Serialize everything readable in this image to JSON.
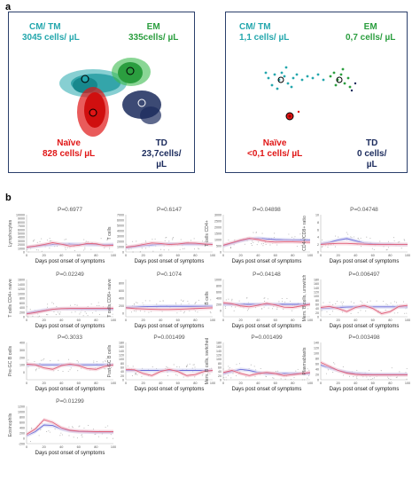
{
  "panel_a": {
    "letter": "a",
    "left_box": {
      "cm_tm": {
        "name": "CM/ TM",
        "count": "3045 cells/ µL"
      },
      "em": {
        "name": "EM",
        "count": "335cells/ µL"
      },
      "naive": {
        "name": "Naïve",
        "count": "828 cells/ µL"
      },
      "td": {
        "name": "TD",
        "count_line1": "23,7cells/",
        "count_line2": "µL"
      }
    },
    "right_box": {
      "cm_tm": {
        "name": "CM/ TM",
        "count": "1,1 cells/ µL"
      },
      "em": {
        "name": "EM",
        "count": "0,7 cells/ µL"
      },
      "naive": {
        "name": "Naïve",
        "count": "<0,1 cells/ µL"
      },
      "td": {
        "name": "TD",
        "count_line1": "0 cells/",
        "count_line2": "µL"
      }
    },
    "colors": {
      "cm_tm": "#24a7ad",
      "em": "#2b9e3f",
      "naive": "#e01616",
      "td": "#1a2a5c",
      "frame": "#2b3f6b"
    }
  },
  "panel_b": {
    "letter": "b",
    "colors": {
      "line_blue": "#6b6bd8",
      "line_red": "#e0607a",
      "band": "#d9d9e8",
      "points": "#999999"
    }
  },
  "chart_data": [
    {
      "type": "line",
      "title": "P=0.6977",
      "ylabel": "Lymphocytes",
      "xlabel": "Days post onset of symptoms",
      "xlim": [
        0,
        100
      ],
      "ylim": [
        0,
        10000
      ],
      "yticks": [
        0,
        1000,
        2000,
        3000,
        4000,
        5000,
        6000,
        7000,
        8000,
        9000,
        10000
      ],
      "xticks": [
        0,
        20,
        40,
        60,
        80,
        100
      ],
      "series": [
        {
          "x": [
            0,
            10,
            20,
            30,
            40,
            50,
            60,
            70,
            80,
            90,
            100
          ],
          "values": [
            1200,
            1500,
            1800,
            2000,
            2100,
            2100,
            2050,
            2000,
            1950,
            1950,
            2000
          ]
        },
        {
          "x": [
            0,
            10,
            20,
            30,
            40,
            50,
            60,
            70,
            80,
            90,
            100
          ],
          "values": [
            1300,
            1600,
            2000,
            2500,
            2100,
            1600,
            1800,
            2300,
            2200,
            1700,
            1800
          ]
        }
      ]
    },
    {
      "type": "line",
      "title": "P=0.6147",
      "ylabel": "T cells",
      "xlabel": "Days post onset of symptoms",
      "xlim": [
        0,
        100
      ],
      "ylim": [
        0,
        7000
      ],
      "yticks": [
        0,
        1000,
        2000,
        3000,
        4000,
        5000,
        6000,
        7000
      ],
      "xticks": [
        0,
        20,
        40,
        60,
        80,
        100
      ],
      "series": [
        {
          "x": [
            0,
            10,
            20,
            30,
            40,
            50,
            60,
            70,
            80,
            90,
            100
          ],
          "values": [
            800,
            1000,
            1200,
            1350,
            1450,
            1500,
            1500,
            1480,
            1470,
            1460,
            1450
          ]
        },
        {
          "x": [
            0,
            10,
            20,
            30,
            40,
            50,
            60,
            70,
            80,
            90,
            100
          ],
          "values": [
            900,
            1100,
            1400,
            1700,
            1600,
            1400,
            1500,
            1700,
            1650,
            1500,
            1400
          ]
        }
      ]
    },
    {
      "type": "line",
      "title": "P=0.04898",
      "ylabel": "T cells CD4+",
      "xlabel": "Days post onset of symptoms",
      "xlim": [
        0,
        100
      ],
      "ylim": [
        0,
        3000
      ],
      "yticks": [
        0,
        500,
        1000,
        1500,
        2000,
        2500,
        3000
      ],
      "xticks": [
        0,
        20,
        40,
        60,
        80,
        100
      ],
      "series": [
        {
          "x": [
            0,
            10,
            20,
            30,
            40,
            50,
            60,
            70,
            80,
            90,
            100
          ],
          "values": [
            500,
            700,
            900,
            1050,
            1100,
            1050,
            1000,
            980,
            970,
            960,
            950
          ]
        },
        {
          "x": [
            0,
            10,
            20,
            30,
            40,
            50,
            60,
            70,
            80,
            90,
            100
          ],
          "values": [
            550,
            750,
            950,
            1100,
            1000,
            850,
            800,
            820,
            820,
            800,
            780
          ]
        }
      ]
    },
    {
      "type": "line",
      "title": "P=0.04748",
      "ylabel": "CD4+/CD8+ ratio",
      "xlabel": "Days post onset of symptoms",
      "xlim": [
        0,
        100
      ],
      "ylim": [
        0,
        10
      ],
      "yticks": [
        0,
        2,
        4,
        6,
        8,
        10
      ],
      "xticks": [
        0,
        20,
        40,
        60,
        80,
        100
      ],
      "series": [
        {
          "x": [
            0,
            10,
            20,
            30,
            40,
            50,
            60,
            70,
            80,
            90,
            100
          ],
          "values": [
            2.2,
            2.6,
            3.2,
            3.6,
            3.0,
            2.4,
            2.2,
            2.1,
            2.1,
            2.0,
            2.0
          ]
        },
        {
          "x": [
            0,
            10,
            20,
            30,
            40,
            50,
            60,
            70,
            80,
            90,
            100
          ],
          "values": [
            2.0,
            2.2,
            2.3,
            2.3,
            2.2,
            2.1,
            2.0,
            2.0,
            2.0,
            2.0,
            2.0
          ]
        }
      ]
    },
    {
      "type": "line",
      "title": "P=0.02249",
      "ylabel": "T cells CD4+ naive",
      "xlabel": "Days post onset of symptoms",
      "xlim": [
        0,
        100
      ],
      "ylim": [
        0,
        1600
      ],
      "yticks": [
        0,
        200,
        400,
        600,
        800,
        1000,
        1200,
        1400,
        1600
      ],
      "xticks": [
        0,
        20,
        40,
        60,
        80,
        100
      ],
      "series": [
        {
          "x": [
            0,
            10,
            20,
            30,
            40,
            50,
            60,
            70,
            80,
            90,
            100
          ],
          "values": [
            150,
            220,
            280,
            320,
            340,
            340,
            335,
            330,
            330,
            330,
            330
          ]
        },
        {
          "x": [
            0,
            10,
            20,
            30,
            40,
            50,
            60,
            70,
            80,
            90,
            100
          ],
          "values": [
            120,
            180,
            250,
            320,
            350,
            360,
            360,
            360,
            360,
            360,
            360
          ]
        }
      ]
    },
    {
      "type": "line",
      "title": "P=0.1074",
      "ylabel": "T cells CD8+ naive",
      "xlabel": "Days post onset of symptoms",
      "xlim": [
        0,
        100
      ],
      "ylim": [
        -100,
        900
      ],
      "yticks": [
        0,
        200,
        400,
        600,
        800
      ],
      "xticks": [
        0,
        20,
        40,
        60,
        80,
        100
      ],
      "series": [
        {
          "x": [
            0,
            10,
            20,
            30,
            40,
            50,
            60,
            70,
            80,
            90,
            100
          ],
          "values": [
            150,
            160,
            170,
            175,
            180,
            180,
            180,
            180,
            180,
            180,
            180
          ]
        },
        {
          "x": [
            0,
            10,
            20,
            30,
            40,
            50,
            60,
            70,
            80,
            90,
            100
          ],
          "values": [
            140,
            120,
            110,
            100,
            95,
            95,
            100,
            110,
            120,
            130,
            140
          ]
        }
      ]
    },
    {
      "type": "line",
      "title": "P=0.04148",
      "ylabel": "B cells",
      "xlabel": "Days post onset of symptoms",
      "xlim": [
        0,
        100
      ],
      "ylim": [
        -200,
        1000
      ],
      "yticks": [
        0,
        200,
        400,
        600,
        800,
        1000
      ],
      "xticks": [
        0,
        20,
        40,
        60,
        80,
        100
      ],
      "series": [
        {
          "x": [
            0,
            10,
            20,
            30,
            40,
            50,
            60,
            70,
            80,
            90,
            100
          ],
          "values": [
            200,
            200,
            200,
            200,
            200,
            200,
            200,
            200,
            200,
            200,
            200
          ]
        },
        {
          "x": [
            0,
            10,
            20,
            30,
            40,
            50,
            60,
            70,
            80,
            90,
            100
          ],
          "values": [
            250,
            220,
            150,
            120,
            170,
            230,
            180,
            110,
            100,
            150,
            200
          ]
        }
      ]
    },
    {
      "type": "line",
      "title": "P=0.006497",
      "ylabel": "Mem. B cells, unswitch",
      "xlabel": "Days post onset of symptoms",
      "xlim": [
        0,
        100
      ],
      "ylim": [
        0,
        180
      ],
      "yticks": [
        0,
        20,
        40,
        60,
        80,
        100,
        120,
        140,
        160,
        180
      ],
      "xticks": [
        0,
        20,
        40,
        60,
        80,
        100
      ],
      "series": [
        {
          "x": [
            0,
            10,
            20,
            30,
            40,
            50,
            60,
            70,
            80,
            90,
            100
          ],
          "values": [
            40,
            42,
            45,
            47,
            48,
            48,
            48,
            48,
            48,
            48,
            48
          ]
        },
        {
          "x": [
            0,
            10,
            20,
            30,
            40,
            50,
            60,
            70,
            80,
            90,
            100
          ],
          "values": [
            45,
            50,
            40,
            25,
            45,
            55,
            40,
            15,
            25,
            50,
            55
          ]
        }
      ]
    },
    {
      "type": "line",
      "title": "P=0.3033",
      "ylabel": "Pre-GC B cells",
      "xlabel": "Days post onset of symptoms",
      "xlim": [
        0,
        100
      ],
      "ylim": [
        -100,
        400
      ],
      "yticks": [
        0,
        100,
        200,
        300,
        400
      ],
      "xticks": [
        0,
        20,
        40,
        60,
        80,
        100
      ],
      "series": [
        {
          "x": [
            0,
            10,
            20,
            30,
            40,
            50,
            60,
            70,
            80,
            90,
            100
          ],
          "values": [
            100,
            100,
            100,
            100,
            100,
            100,
            100,
            100,
            100,
            100,
            100
          ]
        },
        {
          "x": [
            0,
            10,
            20,
            30,
            40,
            50,
            60,
            70,
            80,
            90,
            100
          ],
          "values": [
            110,
            100,
            60,
            40,
            90,
            110,
            90,
            50,
            40,
            80,
            100
          ]
        }
      ]
    },
    {
      "type": "line",
      "title": "P=0.001499",
      "ylabel": "Post-GC B cells",
      "xlabel": "Days post onset of symptoms",
      "xlim": [
        0,
        100
      ],
      "ylim": [
        0,
        180
      ],
      "yticks": [
        0,
        20,
        40,
        60,
        80,
        100,
        120,
        140,
        160,
        180
      ],
      "xticks": [
        0,
        20,
        40,
        60,
        80,
        100
      ],
      "series": [
        {
          "x": [
            0,
            10,
            20,
            30,
            40,
            50,
            60,
            70,
            80,
            90,
            100
          ],
          "values": [
            45,
            45,
            45,
            45,
            45,
            45,
            45,
            45,
            45,
            45,
            45
          ]
        },
        {
          "x": [
            0,
            10,
            20,
            30,
            40,
            50,
            60,
            70,
            80,
            90,
            100
          ],
          "values": [
            50,
            48,
            30,
            20,
            40,
            50,
            40,
            20,
            25,
            40,
            45
          ]
        }
      ]
    },
    {
      "type": "line",
      "title": "P=0.001499",
      "ylabel": "Mem. B cells, switched",
      "xlabel": "Days post onset of symptoms",
      "xlim": [
        0,
        100
      ],
      "ylim": [
        0,
        180
      ],
      "yticks": [
        0,
        20,
        40,
        60,
        80,
        100,
        120,
        140,
        160,
        180
      ],
      "xticks": [
        0,
        20,
        40,
        60,
        80,
        100
      ],
      "series": [
        {
          "x": [
            0,
            10,
            20,
            30,
            40,
            50,
            60,
            70,
            80,
            90,
            100
          ],
          "values": [
            30,
            40,
            50,
            45,
            35,
            30,
            30,
            30,
            30,
            30,
            30
          ]
        },
        {
          "x": [
            0,
            10,
            20,
            30,
            40,
            50,
            60,
            70,
            80,
            90,
            100
          ],
          "values": [
            35,
            45,
            30,
            20,
            30,
            35,
            30,
            20,
            25,
            30,
            35
          ]
        }
      ]
    },
    {
      "type": "line",
      "title": "P=0.003498",
      "ylabel": "Plasmablasts",
      "xlabel": "Days post onset of symptoms",
      "xlim": [
        0,
        100
      ],
      "ylim": [
        0,
        140
      ],
      "yticks": [
        0,
        20,
        40,
        60,
        80,
        100,
        120,
        140
      ],
      "xticks": [
        0,
        20,
        40,
        60,
        80,
        100
      ],
      "series": [
        {
          "x": [
            0,
            10,
            20,
            30,
            40,
            50,
            60,
            70,
            80,
            90,
            100
          ],
          "values": [
            55,
            45,
            35,
            28,
            24,
            22,
            20,
            20,
            20,
            20,
            20
          ]
        },
        {
          "x": [
            0,
            10,
            20,
            30,
            40,
            50,
            60,
            70,
            80,
            90,
            100
          ],
          "values": [
            65,
            50,
            35,
            25,
            20,
            18,
            18,
            18,
            18,
            18,
            18
          ]
        }
      ]
    },
    {
      "type": "line",
      "title": "P=0.01299",
      "ylabel": "Eosinophils",
      "xlabel": "Days post onset of symptoms",
      "xlim": [
        0,
        100
      ],
      "ylim": [
        -200,
        1200
      ],
      "yticks": [
        -200,
        0,
        200,
        400,
        600,
        800,
        1000,
        1200
      ],
      "xticks": [
        0,
        20,
        40,
        60,
        80,
        100
      ],
      "series": [
        {
          "x": [
            0,
            10,
            20,
            30,
            40,
            50,
            60,
            70,
            80,
            90,
            100
          ],
          "values": [
            100,
            250,
            500,
            480,
            350,
            280,
            250,
            240,
            230,
            230,
            230
          ]
        },
        {
          "x": [
            0,
            10,
            20,
            30,
            40,
            50,
            60,
            70,
            80,
            90,
            100
          ],
          "values": [
            150,
            350,
            700,
            600,
            400,
            300,
            270,
            260,
            250,
            250,
            250
          ]
        }
      ]
    }
  ]
}
